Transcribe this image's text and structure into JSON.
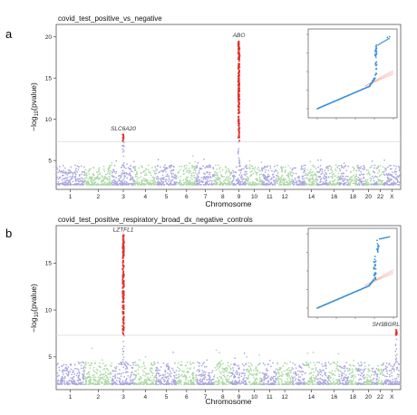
{
  "colors": {
    "odd_chromosome": "#a9a6de",
    "even_chromosome": "#abd8a4",
    "significant": "#e0332c",
    "threshold_line": "#d9d9d9",
    "qq_points": "#3b8fd8",
    "qq_null": "#f3a6a6",
    "frame": "#555555"
  },
  "chart_data": [
    {
      "type": "scatter",
      "subtype": "manhattan",
      "panel_letter": "a",
      "title": "covid_test_positive_vs_negative",
      "xlabel": "Chromosome",
      "ylabel": "-log10(pvalue)",
      "ylabel_parts": {
        "prefix": "−log",
        "subscript": "10",
        "suffix": "(pvalue)"
      },
      "ylim": [
        1.5,
        21.5
      ],
      "yticks": [
        5,
        10,
        15,
        20
      ],
      "significance_threshold": 7.3,
      "chromosome_ticks": [
        "1",
        "2",
        "3",
        "4",
        "5",
        "6",
        "7",
        "8",
        "9",
        "10",
        "11",
        "12",
        "14",
        "16",
        "18",
        "20",
        "22",
        "X"
      ],
      "peaks": [
        {
          "gene": "SLC6A20",
          "chromosome": "3",
          "peak": 8.2
        },
        {
          "gene": "ABO",
          "chromosome": "9",
          "peak": 19.5
        }
      ],
      "inset": {
        "type": "qq",
        "legend": false
      }
    },
    {
      "type": "scatter",
      "subtype": "manhattan",
      "panel_letter": "b",
      "title": "covid_test_positive_respiratory_broad_dx_negative_controls",
      "xlabel": "Chromosome",
      "ylabel": "-log10(pvalue)",
      "ylabel_parts": {
        "prefix": "−log",
        "subscript": "10",
        "suffix": "(pvalue)"
      },
      "ylim": [
        1.5,
        19
      ],
      "yticks": [
        5,
        10,
        15
      ],
      "significance_threshold": 7.3,
      "chromosome_ticks": [
        "1",
        "2",
        "3",
        "4",
        "5",
        "6",
        "7",
        "8",
        "9",
        "10",
        "11",
        "12",
        "14",
        "16",
        "18",
        "20",
        "22",
        "X"
      ],
      "peaks": [
        {
          "gene": "LZTFL1",
          "chromosome": "3",
          "peak": 18
        },
        {
          "gene": "SH3BGRL",
          "chromosome": "X",
          "peak": 7.9
        }
      ],
      "inset": {
        "type": "qq",
        "legend": false
      }
    }
  ]
}
